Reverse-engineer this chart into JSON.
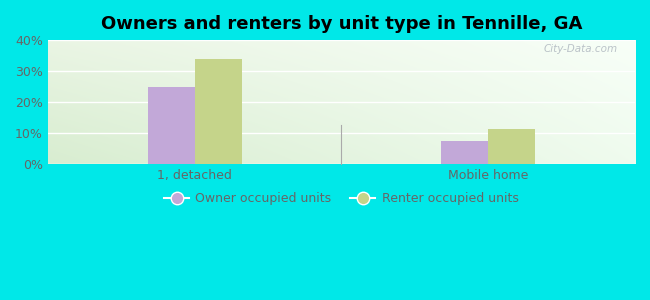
{
  "title": "Owners and renters by unit type in Tennille, GA",
  "categories": [
    "1, detached",
    "Mobile home"
  ],
  "owner_values": [
    25.0,
    7.5
  ],
  "renter_values": [
    34.0,
    11.5
  ],
  "owner_color": "#c2a8d8",
  "renter_color": "#c5d48a",
  "ylim": [
    0,
    40
  ],
  "yticks": [
    0,
    10,
    20,
    30,
    40
  ],
  "ytick_labels": [
    "0%",
    "10%",
    "20%",
    "30%",
    "40%"
  ],
  "legend_owner": "Owner occupied units",
  "legend_renter": "Renter occupied units",
  "outer_bg": "#00e8e8",
  "plot_bg_topleft": "#eaf5e4",
  "plot_bg_topright": "#f8fff8",
  "plot_bg_bottom": "#d8edd0",
  "watermark": "City-Data.com",
  "bar_width": 0.32,
  "group_positions": [
    1.5,
    3.5
  ],
  "xlim": [
    0.5,
    4.5
  ],
  "title_fontsize": 13,
  "tick_fontsize": 9,
  "legend_fontsize": 9
}
